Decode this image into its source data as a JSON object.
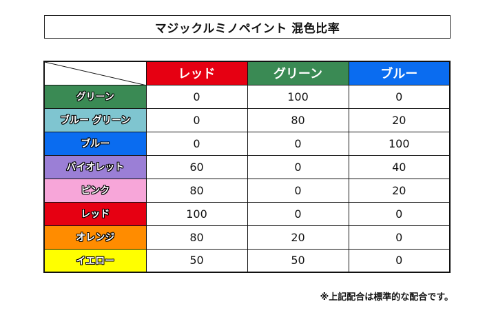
{
  "title": "マジックルミノペイント 混色比率",
  "colors": {
    "red": "#e60012",
    "green": "#3a8a54",
    "blue": "#0a6cf0"
  },
  "columns": [
    {
      "label": "レッド",
      "color": "#e60012"
    },
    {
      "label": "グリーン",
      "color": "#3a8a54"
    },
    {
      "label": "ブルー",
      "color": "#0a6cf0"
    }
  ],
  "rows": [
    {
      "label": "グリーン",
      "color": "#3a8a54",
      "values": [
        "0",
        "100",
        "0"
      ]
    },
    {
      "label": "ブルー グリーン",
      "color": "#7fc5d0",
      "values": [
        "0",
        "80",
        "20"
      ]
    },
    {
      "label": "ブルー",
      "color": "#0a6cf0",
      "values": [
        "0",
        "0",
        "100"
      ]
    },
    {
      "label": "バイオレット",
      "color": "#9b7fd6",
      "values": [
        "60",
        "0",
        "40"
      ]
    },
    {
      "label": "ピンク",
      "color": "#f7a6d9",
      "values": [
        "80",
        "0",
        "20"
      ]
    },
    {
      "label": "レッド",
      "color": "#e60012",
      "values": [
        "100",
        "0",
        "0"
      ]
    },
    {
      "label": "オレンジ",
      "color": "#ff8c00",
      "values": [
        "80",
        "20",
        "0"
      ]
    },
    {
      "label": "イエロー",
      "color": "#ffff00",
      "values": [
        "50",
        "50",
        "0"
      ]
    }
  ],
  "note": "※上記配合は標準的な配合です。"
}
